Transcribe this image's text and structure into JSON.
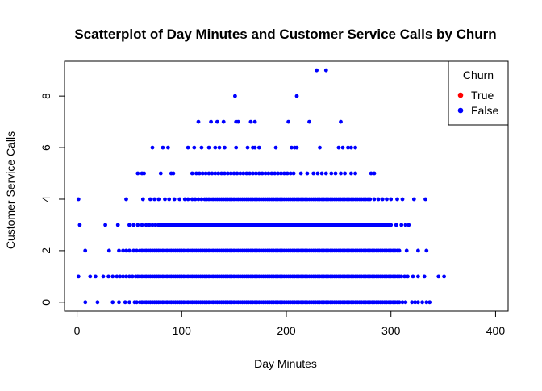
{
  "chart_data": {
    "type": "scatter",
    "title": "Scatterplot of Day Minutes and Customer Service Calls by Churn",
    "xlabel": "Day Minutes",
    "ylabel": "Customer Service Calls",
    "xlim": [
      -12,
      412
    ],
    "ylim": [
      -0.35,
      9.35
    ],
    "x_ticks": [
      0,
      100,
      200,
      300,
      400
    ],
    "y_ticks": [
      0,
      2,
      4,
      6,
      8
    ],
    "grid": false,
    "legend": {
      "title": "Churn",
      "position": "top-right",
      "entries": [
        {
          "label": "True",
          "color": "#ff0000"
        },
        {
          "label": "False",
          "color": "#0000ff"
        }
      ]
    },
    "series": [
      {
        "name": "False",
        "color": "#0000ff",
        "rows": [
          {
            "y": 0,
            "x": [
              7.9,
              19.5,
              34,
              40,
              46,
              50,
              55,
              57,
              60,
              62,
              64,
              66,
              68,
              70,
              72,
              74,
              76,
              78,
              80,
              82,
              84,
              86,
              88,
              90,
              92,
              94,
              96,
              98,
              100,
              102,
              104,
              106,
              108,
              110,
              112,
              114,
              116,
              118,
              120,
              122,
              124,
              126,
              128,
              130,
              132,
              134,
              136,
              138,
              140,
              142,
              144,
              146,
              148,
              150,
              152,
              154,
              156,
              158,
              160,
              162,
              164,
              166,
              168,
              170,
              172,
              174,
              176,
              178,
              180,
              182,
              184,
              186,
              188,
              190,
              192,
              194,
              196,
              198,
              200,
              202,
              204,
              206,
              208,
              210,
              212,
              214,
              216,
              218,
              220,
              222,
              224,
              226,
              228,
              230,
              232,
              234,
              236,
              238,
              240,
              242,
              244,
              246,
              248,
              250,
              252,
              254,
              256,
              258,
              260,
              262,
              264,
              266,
              268,
              270,
              272,
              274,
              276,
              278,
              280,
              282,
              284,
              286,
              288,
              290,
              292,
              294,
              296,
              298,
              300,
              302,
              304,
              306,
              308,
              311,
              314,
              320,
              323,
              326,
              330,
              334,
              337
            ]
          },
          {
            "y": 1,
            "x": [
              1.3,
              12.5,
              17.6,
              25,
              30,
              34,
              38,
              41,
              44,
              47,
              50,
              53,
              56,
              58,
              60,
              62,
              64,
              66,
              68,
              70,
              72,
              74,
              76,
              78,
              80,
              82,
              84,
              86,
              88,
              90,
              92,
              94,
              96,
              98,
              100,
              102,
              104,
              106,
              108,
              110,
              112,
              114,
              116,
              118,
              120,
              122,
              124,
              126,
              128,
              130,
              132,
              134,
              136,
              138,
              140,
              142,
              144,
              146,
              148,
              150,
              152,
              154,
              156,
              158,
              160,
              162,
              164,
              166,
              168,
              170,
              172,
              174,
              176,
              178,
              180,
              182,
              184,
              186,
              188,
              190,
              192,
              194,
              196,
              198,
              200,
              202,
              204,
              206,
              208,
              210,
              212,
              214,
              216,
              218,
              220,
              222,
              224,
              226,
              228,
              230,
              232,
              234,
              236,
              238,
              240,
              242,
              244,
              246,
              248,
              250,
              252,
              254,
              256,
              258,
              260,
              262,
              264,
              266,
              268,
              270,
              272,
              274,
              276,
              278,
              280,
              282,
              284,
              286,
              288,
              290,
              292,
              294,
              296,
              298,
              300,
              302,
              304,
              306,
              308,
              310,
              313,
              316,
              321,
              326,
              332,
              345.5,
              350.8
            ]
          },
          {
            "y": 2,
            "x": [
              7.8,
              30.6,
              40,
              44,
              47,
              50,
              54,
              57,
              60,
              62,
              64,
              66,
              68,
              70,
              72,
              74,
              76,
              78,
              80,
              82,
              84,
              86,
              88,
              90,
              92,
              94,
              96,
              98,
              100,
              102,
              104,
              106,
              108,
              110,
              112,
              114,
              116,
              118,
              120,
              122,
              124,
              126,
              128,
              130,
              132,
              134,
              136,
              138,
              140,
              142,
              144,
              146,
              148,
              150,
              152,
              154,
              156,
              158,
              160,
              162,
              164,
              166,
              168,
              170,
              172,
              174,
              176,
              178,
              180,
              182,
              184,
              186,
              188,
              190,
              192,
              194,
              196,
              198,
              200,
              202,
              204,
              206,
              208,
              210,
              212,
              214,
              216,
              218,
              220,
              222,
              224,
              226,
              228,
              230,
              232,
              234,
              236,
              238,
              240,
              242,
              244,
              246,
              248,
              250,
              252,
              254,
              256,
              258,
              260,
              262,
              264,
              266,
              268,
              270,
              272,
              274,
              276,
              278,
              280,
              282,
              284,
              286,
              288,
              290,
              292,
              294,
              296,
              298,
              300,
              302,
              304,
              306,
              308,
              315,
              326,
              334
            ]
          },
          {
            "y": 3,
            "x": [
              2.6,
              27,
              39,
              50,
              54,
              58,
              62,
              66,
              69,
              72,
              75,
              78,
              80,
              82,
              84,
              86,
              88,
              90,
              92,
              94,
              96,
              98,
              100,
              102,
              104,
              106,
              108,
              110,
              112,
              114,
              116,
              118,
              120,
              122,
              124,
              126,
              128,
              130,
              132,
              134,
              136,
              138,
              140,
              142,
              144,
              146,
              148,
              150,
              152,
              154,
              156,
              158,
              160,
              162,
              164,
              166,
              168,
              170,
              172,
              174,
              176,
              178,
              180,
              182,
              184,
              186,
              188,
              190,
              192,
              194,
              196,
              198,
              200,
              202,
              204,
              206,
              208,
              210,
              212,
              214,
              216,
              218,
              220,
              222,
              224,
              226,
              228,
              230,
              232,
              234,
              236,
              238,
              240,
              242,
              244,
              246,
              248,
              250,
              252,
              254,
              256,
              258,
              260,
              262,
              264,
              266,
              268,
              270,
              272,
              274,
              276,
              278,
              280,
              282,
              284,
              286,
              288,
              290,
              292,
              294,
              296,
              298,
              300,
              305,
              310,
              314,
              317
            ]
          },
          {
            "y": 4,
            "x": [
              1.3,
              47,
              63,
              70,
              74,
              78,
              84,
              88,
              93,
              98,
              103,
              106,
              110,
              113,
              116,
              119,
              122,
              124,
              126,
              128,
              130,
              132,
              134,
              136,
              138,
              140,
              142,
              144,
              146,
              148,
              150,
              152,
              154,
              156,
              158,
              160,
              162,
              164,
              166,
              168,
              170,
              172,
              174,
              176,
              178,
              180,
              182,
              184,
              186,
              188,
              190,
              192,
              194,
              196,
              198,
              200,
              202,
              204,
              206,
              208,
              210,
              212,
              214,
              216,
              218,
              220,
              222,
              224,
              226,
              228,
              230,
              232,
              234,
              236,
              238,
              240,
              242,
              244,
              246,
              248,
              250,
              252,
              254,
              256,
              258,
              260,
              262,
              264,
              266,
              268,
              270,
              272,
              274,
              276,
              278,
              280,
              284,
              288,
              292,
              296,
              300,
              306,
              311,
              322,
              333
            ]
          },
          {
            "y": 5,
            "x": [
              58,
              62,
              64,
              80,
              90,
              92,
              110,
              114,
              117,
              120,
              123,
              126,
              129,
              132,
              135,
              138,
              141,
              144,
              147,
              150,
              153,
              156,
              159,
              162,
              165,
              168,
              171,
              174,
              177,
              180,
              183,
              186,
              189,
              192,
              195,
              198,
              201,
              204,
              207,
              214,
              220,
              226,
              230,
              234,
              238,
              243,
              247,
              252,
              256,
              262,
              266,
              281,
              284
            ]
          },
          {
            "y": 6,
            "x": [
              72,
              82,
              87,
              106,
              112,
              119,
              126,
              132,
              136,
              141,
              152,
              163,
              168,
              170,
              174,
              190,
              205,
              208,
              210,
              232,
              250,
              254,
              259,
              262,
              266
            ]
          },
          {
            "y": 7,
            "x": [
              116,
              128,
              134,
              140,
              152,
              154,
              166,
              170,
              202,
              222,
              252
            ]
          },
          {
            "y": 8,
            "x": [
              151,
              210
            ]
          },
          {
            "y": 9,
            "x": [
              229,
              238
            ]
          }
        ]
      }
    ]
  }
}
